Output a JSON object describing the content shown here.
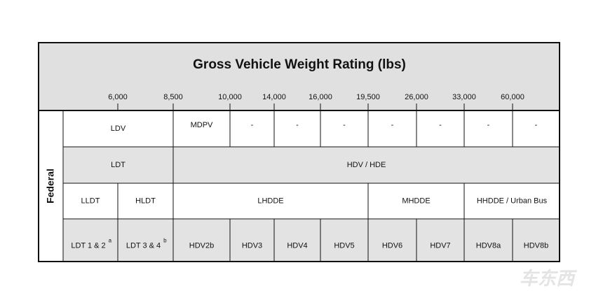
{
  "header": {
    "title": "Gross Vehicle Weight Rating (lbs)",
    "scale": [
      "6,000",
      "8,500",
      "10,000",
      "14,000",
      "16,000",
      "19,500",
      "26,000",
      "33,000",
      "60,000"
    ]
  },
  "table": {
    "group": "Federal",
    "rows": [
      [
        {
          "label": "LDV"
        },
        {
          "label": "MDPV"
        },
        {
          "label": "-"
        },
        {
          "label": "-"
        },
        {
          "label": "-"
        },
        {
          "label": "-"
        },
        {
          "label": "-"
        },
        {
          "label": "-"
        },
        {
          "label": "-"
        }
      ],
      [
        {
          "label": "LDT"
        },
        {
          "label": "HDV / HDE"
        }
      ],
      [
        {
          "label": "LLDT"
        },
        {
          "label": "HLDT"
        },
        {
          "label": "LHDDE"
        },
        {
          "label": "MHDDE"
        },
        {
          "label": "HHDDE / Urban Bus"
        }
      ],
      [
        {
          "label": "LDT 1 & 2",
          "note": "a"
        },
        {
          "label": "LDT 3 & 4",
          "note": "b"
        },
        {
          "label": "HDV2b"
        },
        {
          "label": "HDV3"
        },
        {
          "label": "HDV4"
        },
        {
          "label": "HDV5"
        },
        {
          "label": "HDV6"
        },
        {
          "label": "HDV7"
        },
        {
          "label": "HDV8a"
        },
        {
          "label": "HDV8b"
        }
      ]
    ]
  },
  "watermark": "车东西"
}
